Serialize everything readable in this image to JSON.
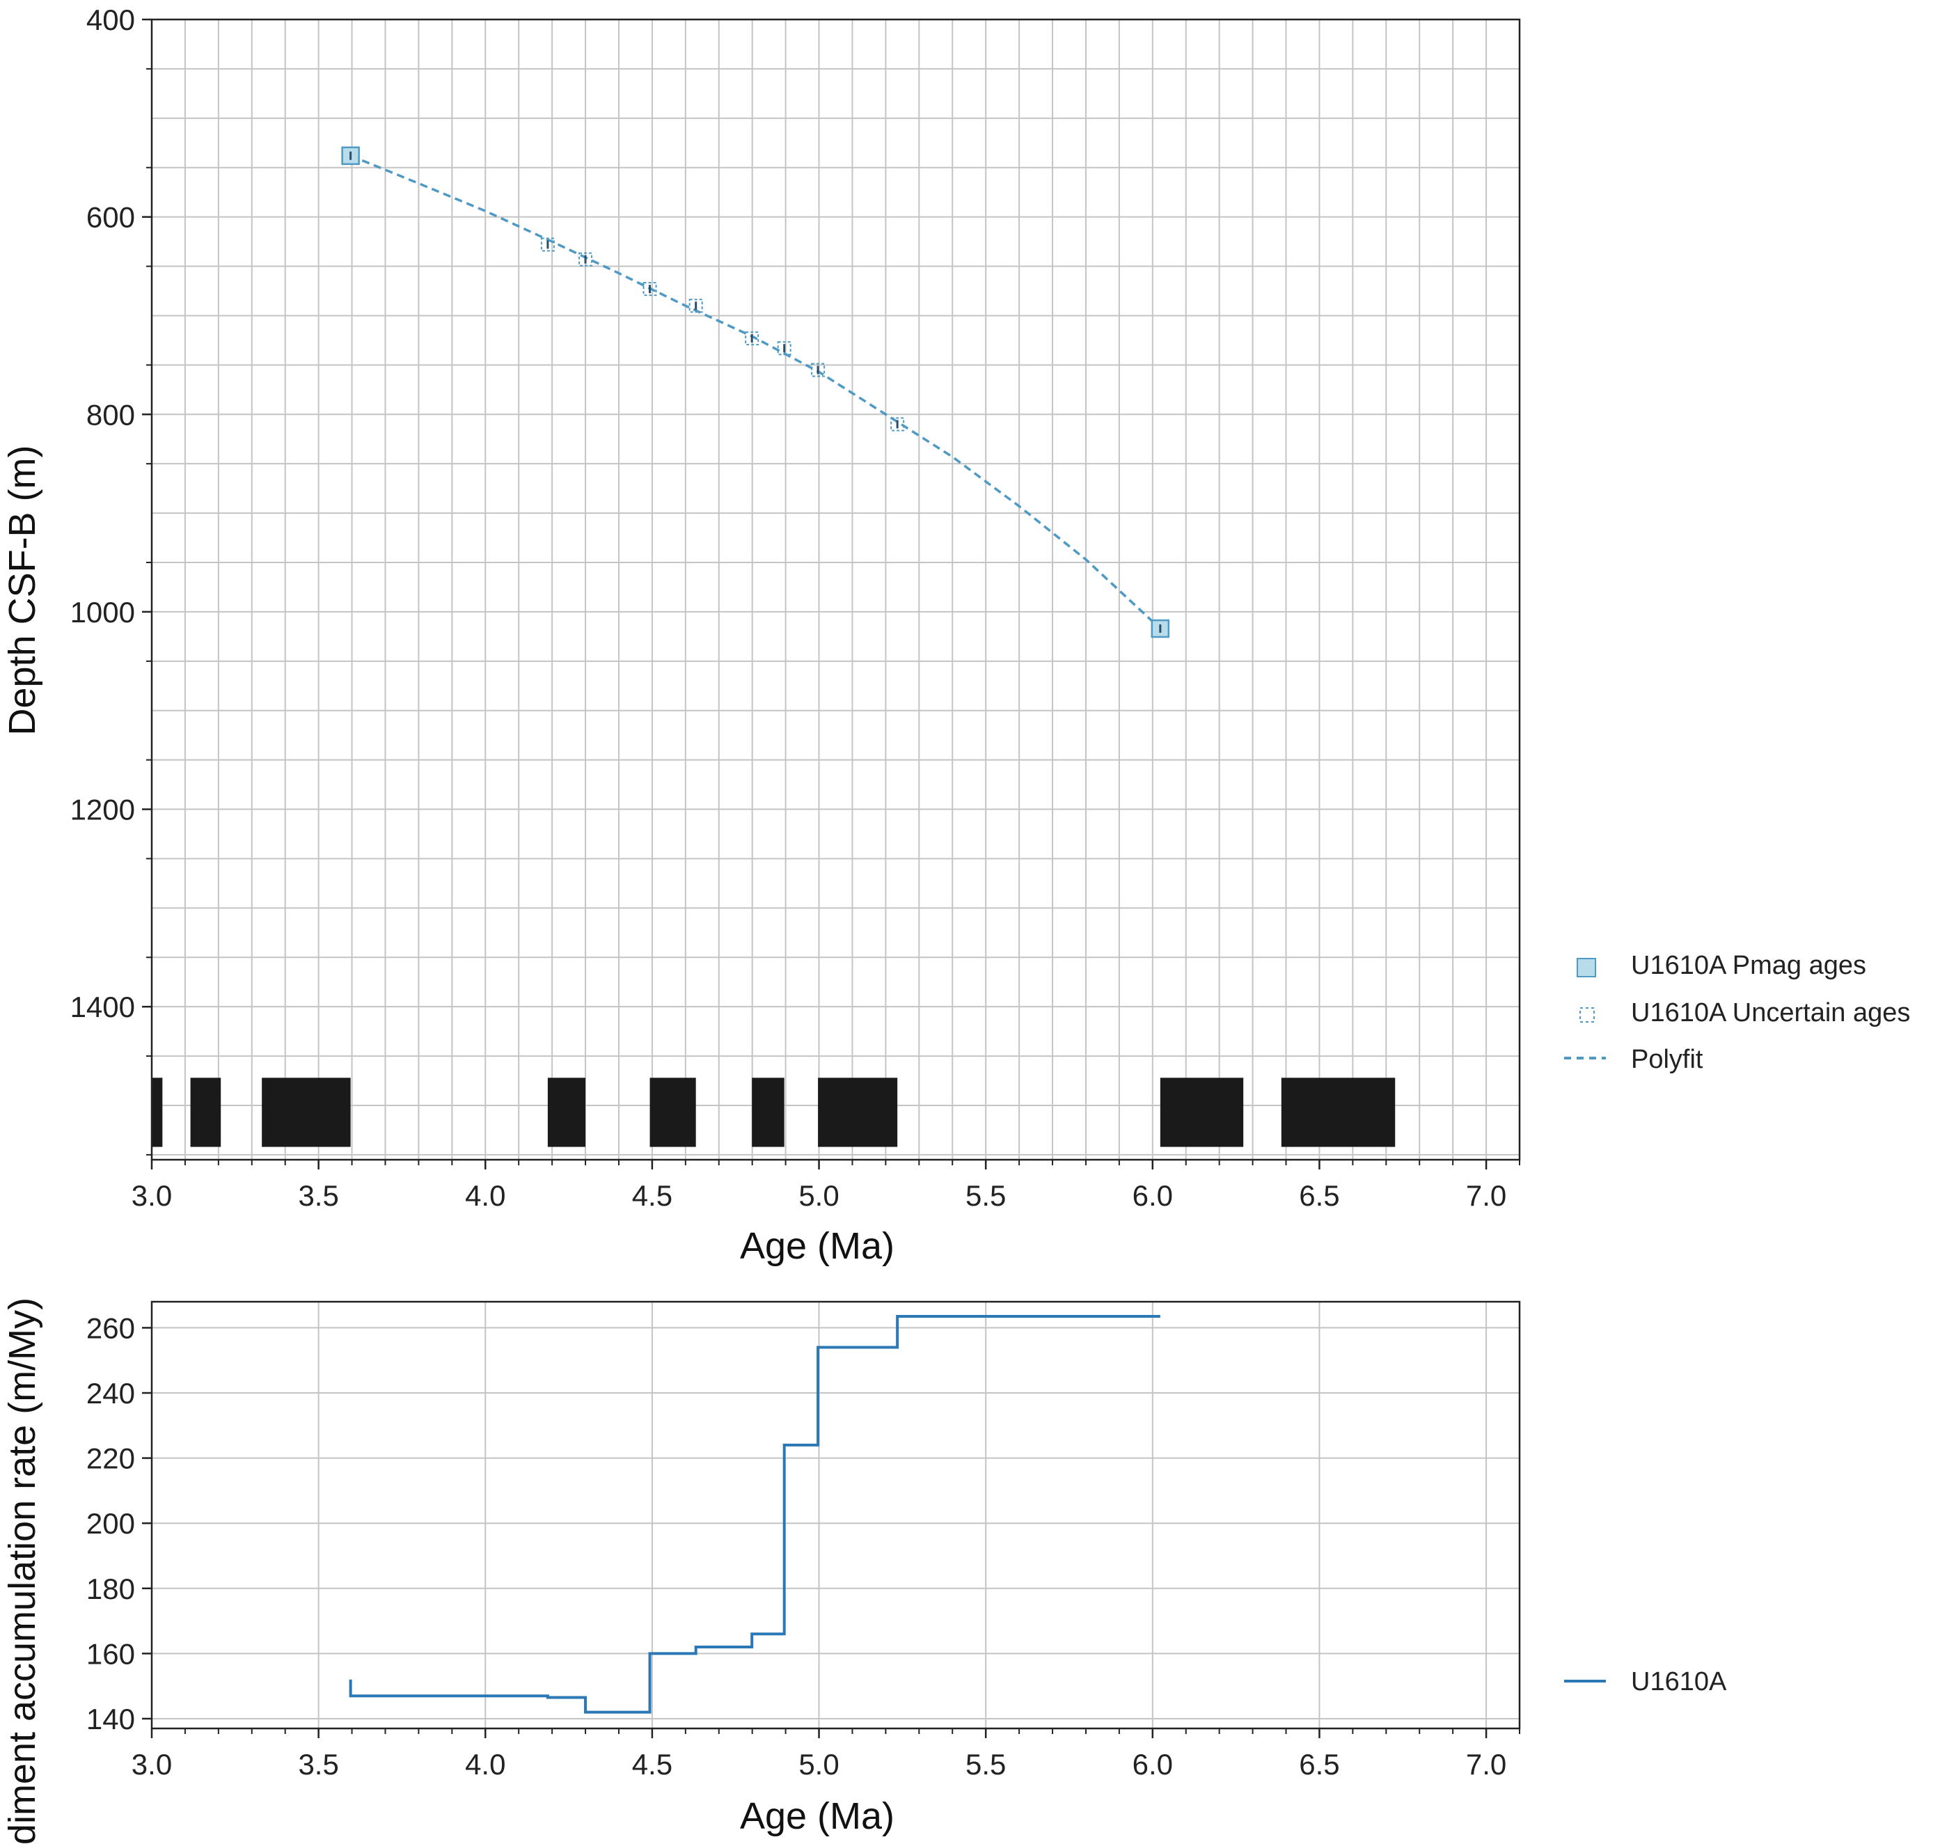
{
  "colors": {
    "pmag_fill": "#b9dcea",
    "pmag_edge": "#4f9ac4",
    "polyfit": "#4f9ac4",
    "sar_line": "#2a78b5",
    "polarity": "#1a1a1a",
    "grid": "#c4c4c4"
  },
  "chart_data": [
    {
      "type": "scatter",
      "xlabel": "Age (Ma)",
      "ylabel": "Depth CSF-B (m)",
      "xlim": [
        3.0,
        7.1
      ],
      "ylim": [
        1555,
        400
      ],
      "y_inverted": true,
      "xticks": [
        "3.0",
        "3.5",
        "4.0",
        "4.5",
        "5.0",
        "5.5",
        "6.0",
        "6.5",
        "7.0"
      ],
      "yticks": [
        "400",
        "600",
        "800",
        "1000",
        "1200",
        "1400"
      ],
      "grid": true,
      "legend_position": "right",
      "series": [
        {
          "name": "U1610A Pmag ages",
          "marker": "filled-square",
          "points": [
            [
              3.596,
              538
            ],
            [
              6.023,
              1017
            ]
          ]
        },
        {
          "name": "U1610A Uncertain ages",
          "marker": "dashed-square",
          "points": [
            [
              4.187,
              628
            ],
            [
              4.3,
              643
            ],
            [
              4.493,
              673
            ],
            [
              4.631,
              690
            ],
            [
              4.799,
              723
            ],
            [
              4.896,
              733
            ],
            [
              4.997,
              755
            ],
            [
              5.235,
              810
            ]
          ]
        },
        {
          "name": "Polyfit",
          "style": "dashed-line",
          "points": [
            [
              3.596,
              538
            ],
            [
              3.8,
              566
            ],
            [
              4.0,
              594
            ],
            [
              4.2,
              625
            ],
            [
              4.4,
              657
            ],
            [
              4.6,
              690
            ],
            [
              4.8,
              721
            ],
            [
              5.0,
              757
            ],
            [
              5.2,
              800
            ],
            [
              5.4,
              843
            ],
            [
              5.6,
              893
            ],
            [
              5.8,
              947
            ],
            [
              6.023,
              1017
            ]
          ]
        }
      ],
      "polarity_bars": [
        [
          3.0,
          3.032
        ],
        [
          3.116,
          3.207
        ],
        [
          3.33,
          3.596
        ],
        [
          4.187,
          4.3
        ],
        [
          4.493,
          4.631
        ],
        [
          4.799,
          4.896
        ],
        [
          4.997,
          5.235
        ],
        [
          6.023,
          6.272
        ],
        [
          6.386,
          6.727
        ]
      ]
    },
    {
      "type": "line",
      "xlabel": "Age (Ma)",
      "ylabel": "Sediment accumulation rate (m/My)",
      "xlim": [
        3.0,
        7.1
      ],
      "ylim": [
        137,
        268
      ],
      "xticks": [
        "3.0",
        "3.5",
        "4.0",
        "4.5",
        "5.0",
        "5.5",
        "6.0",
        "6.5",
        "7.0"
      ],
      "yticks": [
        "140",
        "160",
        "180",
        "200",
        "220",
        "240",
        "260"
      ],
      "grid": true,
      "legend_position": "right",
      "series": [
        {
          "name": "U1610A",
          "style": "step",
          "points": [
            [
              3.596,
              152
            ],
            [
              3.596,
              147
            ],
            [
              4.187,
              147
            ],
            [
              4.187,
              146.5
            ],
            [
              4.3,
              146.5
            ],
            [
              4.3,
              142
            ],
            [
              4.493,
              142
            ],
            [
              4.493,
              160
            ],
            [
              4.631,
              160
            ],
            [
              4.631,
              162
            ],
            [
              4.799,
              162
            ],
            [
              4.799,
              166
            ],
            [
              4.896,
              166
            ],
            [
              4.896,
              224
            ],
            [
              4.997,
              224
            ],
            [
              4.997,
              254
            ],
            [
              5.235,
              254
            ],
            [
              5.235,
              263.5
            ],
            [
              6.023,
              263.5
            ]
          ]
        }
      ]
    }
  ]
}
